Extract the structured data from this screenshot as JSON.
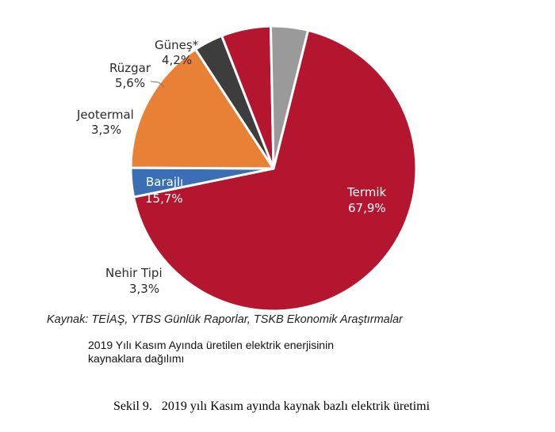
{
  "chart_data": {
    "type": "pie",
    "title": "",
    "slices": [
      {
        "name": "Termik",
        "value_label": "67,9%",
        "value": 67.9,
        "color": "#b5162f"
      },
      {
        "name": "Nehir Tipi",
        "value_label": "3,3%",
        "value": 3.3,
        "color": "#3a6fb5"
      },
      {
        "name": "Barajlı",
        "value_label": "15,7%",
        "value": 15.7,
        "color": "#e88136"
      },
      {
        "name": "Jeotermal",
        "value_label": "3,3%",
        "value": 3.3,
        "color": "#3d3d3d"
      },
      {
        "name": "Rüzgar",
        "value_label": "5,6%",
        "value": 5.6,
        "color": "#b5162f"
      },
      {
        "name": "Güneş*",
        "value_label": "4,2%",
        "value": 4.2,
        "color": "#9a9a9a"
      }
    ]
  },
  "source": "Kaynak: TEİAŞ, YTBS Günlük Raporlar, TSKB Ekonomik Araştırmalar",
  "description": "2019 Yılı Kasım Ayında üretilen elektrik enerjisinin kaynaklara dağılımı",
  "caption": "Sekil 9.   2019 yılı Kasım ayında kaynak bazlı elektrik üretimi"
}
